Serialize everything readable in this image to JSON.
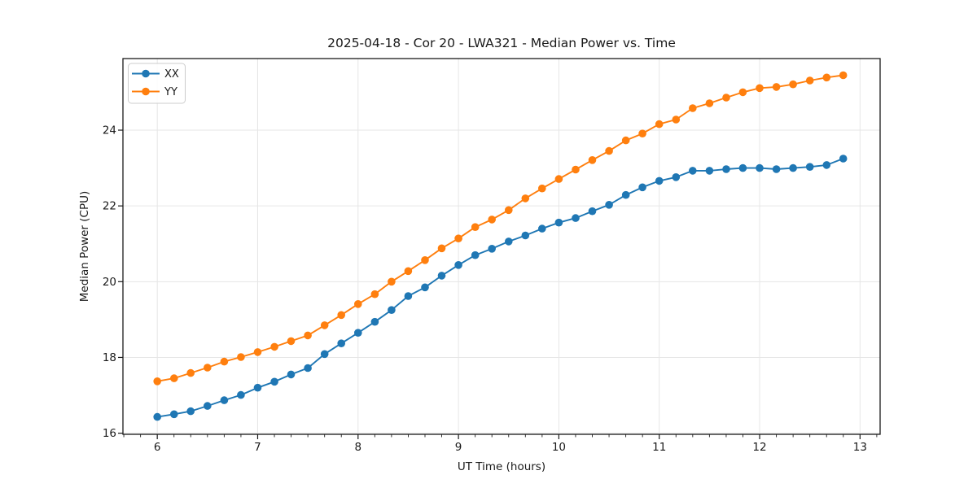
{
  "chart_data": {
    "type": "line",
    "title": "2025-04-18 - Cor 20 - LWA321 - Median Power vs. Time",
    "xlabel": "UT Time (hours)",
    "ylabel": "Median Power (CPU)",
    "xlim": [
      5.658,
      13.2
    ],
    "ylim": [
      15.97,
      25.89
    ],
    "xticks": [
      6,
      7,
      8,
      9,
      10,
      11,
      12,
      13
    ],
    "yticks": [
      16,
      18,
      20,
      22,
      24
    ],
    "minor_xtick_step": 0.1667,
    "grid": true,
    "grid_color": "#e6e6e6",
    "background_color": "#ffffff",
    "legend_position": "upper-left",
    "marker": "circle",
    "x": [
      6.0,
      6.167,
      6.333,
      6.5,
      6.667,
      6.833,
      7.0,
      7.167,
      7.333,
      7.5,
      7.667,
      7.833,
      8.0,
      8.167,
      8.333,
      8.5,
      8.667,
      8.833,
      9.0,
      9.167,
      9.333,
      9.5,
      9.667,
      9.833,
      10.0,
      10.167,
      10.333,
      10.5,
      10.667,
      10.833,
      11.0,
      11.167,
      11.333,
      11.5,
      11.667,
      11.833,
      12.0,
      12.167,
      12.333,
      12.5,
      12.667,
      12.833
    ],
    "series": [
      {
        "name": "XX",
        "color": "#1f77b4",
        "values": [
          16.43,
          16.5,
          16.58,
          16.72,
          16.87,
          17.01,
          17.2,
          17.36,
          17.55,
          17.72,
          18.09,
          18.37,
          18.65,
          18.94,
          19.25,
          19.62,
          19.85,
          20.16,
          20.44,
          20.7,
          20.87,
          21.06,
          21.22,
          21.4,
          21.56,
          21.68,
          21.86,
          22.03,
          22.29,
          22.49,
          22.66,
          22.76,
          22.93,
          22.93,
          22.97,
          23.0,
          23.0,
          22.97,
          23.0,
          23.03,
          23.08,
          23.25
        ]
      },
      {
        "name": "YY",
        "color": "#ff7f0e",
        "values": [
          17.37,
          17.45,
          17.59,
          17.73,
          17.89,
          18.01,
          18.14,
          18.28,
          18.43,
          18.58,
          18.85,
          19.12,
          19.41,
          19.67,
          20.0,
          20.28,
          20.57,
          20.88,
          21.14,
          21.44,
          21.64,
          21.89,
          22.2,
          22.46,
          22.71,
          22.96,
          23.21,
          23.45,
          23.73,
          23.91,
          24.16,
          24.28,
          24.58,
          24.71,
          24.86,
          25.0,
          25.11,
          25.14,
          25.21,
          25.31,
          25.39,
          25.45
        ]
      }
    ]
  }
}
